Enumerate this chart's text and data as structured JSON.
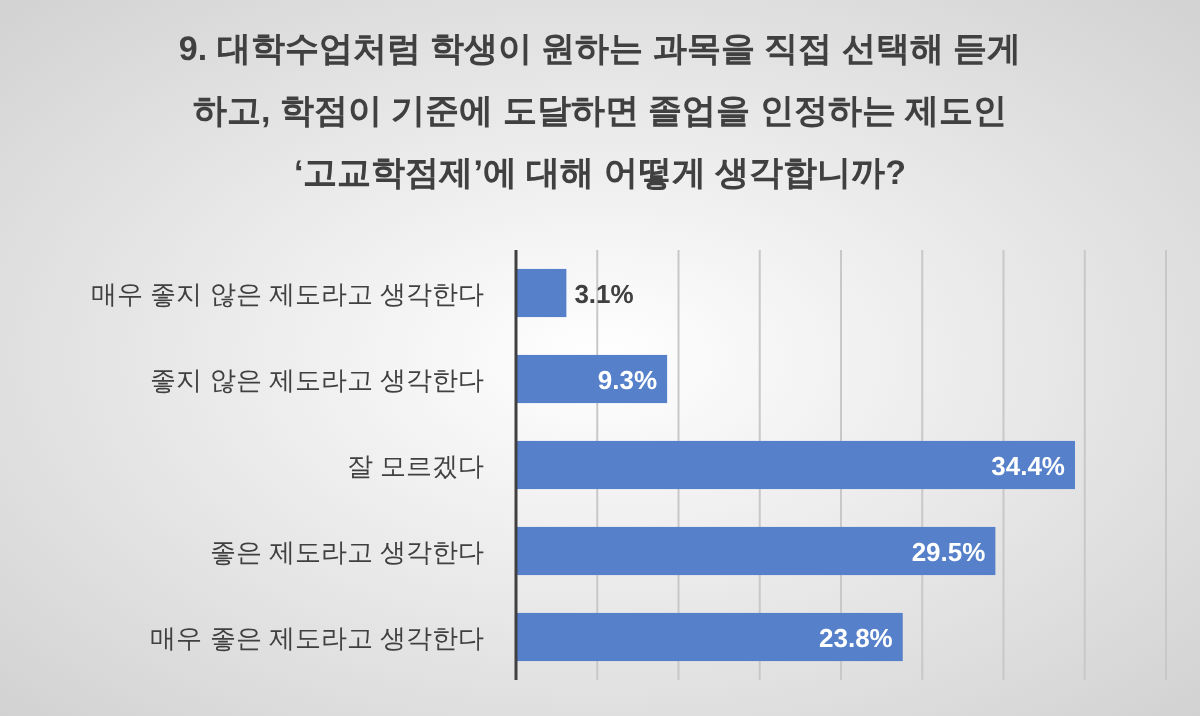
{
  "chart_data": {
    "type": "bar",
    "orientation": "horizontal",
    "title": "9. 대학수업처럼 학생이 원하는 과목을 직접 선택해 듣게\n하고, 학점이 기준에 도달하면 졸업을 인정하는 제도인\n‘고교학점제’에 대해 어떻게 생각합니까?",
    "categories": [
      "매우 좋지 않은 제도라고 생각한다",
      "좋지 않은 제도라고 생각한다",
      "잘 모르겠다",
      "좋은 제도라고 생각한다",
      "매우 좋은 제도라고 생각한다"
    ],
    "values": [
      3.1,
      9.3,
      34.4,
      29.5,
      23.8
    ],
    "value_labels": [
      "3.1%",
      "9.3%",
      "34.4%",
      "29.5%",
      "23.8%"
    ],
    "color": "#5680c9",
    "xlim": [
      0,
      40
    ],
    "xticks": [
      {
        "value": 0,
        "label": null
      },
      {
        "value": 5,
        "label": null
      },
      {
        "value": 10,
        "label": null
      },
      {
        "value": 15,
        "label": null
      },
      {
        "value": 20,
        "label": null
      },
      {
        "value": 25,
        "label": null
      },
      {
        "value": 30,
        "label": null
      },
      {
        "value": 35,
        "label": null
      },
      {
        "value": 40,
        "label": null
      }
    ],
    "grid": "x",
    "tick_labels": "y"
  }
}
